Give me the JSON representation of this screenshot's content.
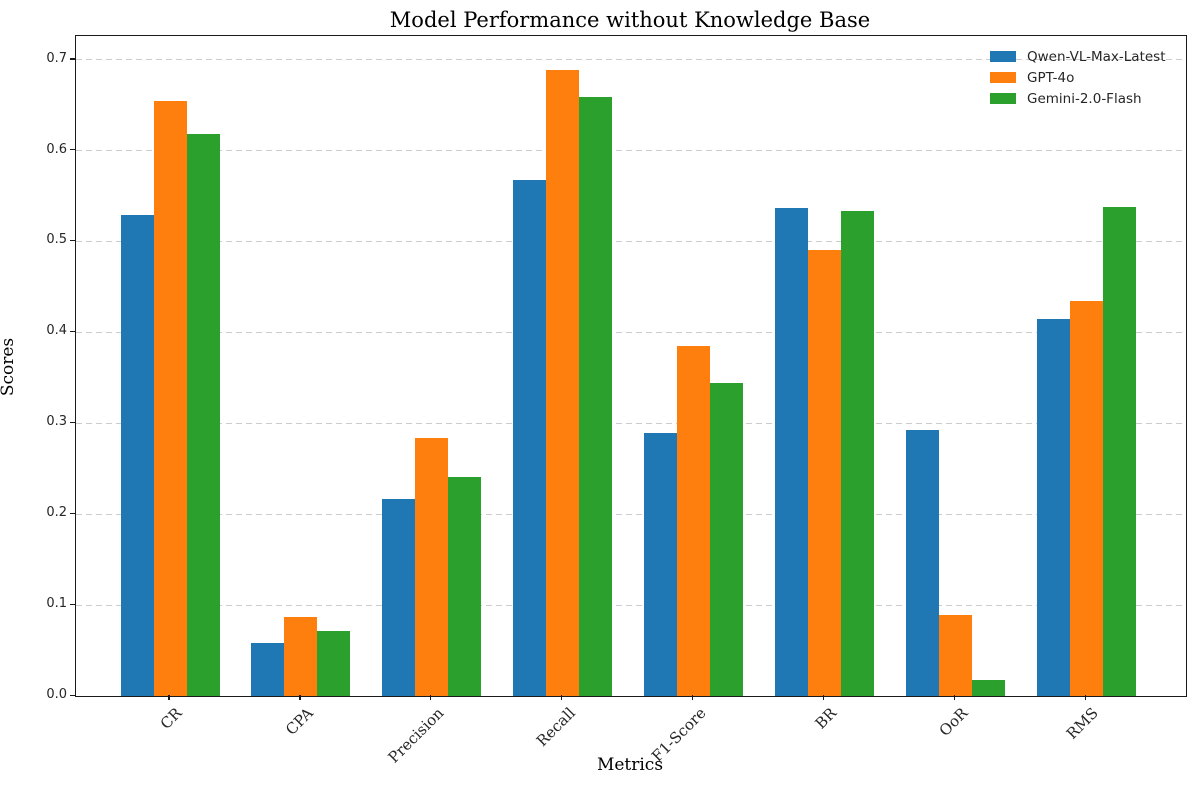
{
  "chart_data": {
    "type": "bar",
    "title": "Model Performance without Knowledge Base",
    "xlabel": "Metrics",
    "ylabel": "Scores",
    "categories": [
      "CR",
      "CPA",
      "Precision",
      "Recall",
      "F1-Score",
      "BR",
      "OoR",
      "RMS"
    ],
    "series": [
      {
        "name": "Qwen-VL-Max-Latest",
        "color": "#1f77b4",
        "values": [
          0.529,
          0.058,
          0.217,
          0.568,
          0.289,
          0.537,
          0.293,
          0.415
        ]
      },
      {
        "name": "GPT-4o",
        "color": "#ff7f0e",
        "values": [
          0.654,
          0.087,
          0.284,
          0.689,
          0.385,
          0.491,
          0.089,
          0.435
        ]
      },
      {
        "name": "Gemini-2.0-Flash",
        "color": "#2ca02c",
        "values": [
          0.618,
          0.071,
          0.241,
          0.659,
          0.344,
          0.533,
          0.018,
          0.538
        ]
      }
    ],
    "ytick_labels": [
      "0.0",
      "0.1",
      "0.2",
      "0.3",
      "0.4",
      "0.5",
      "0.6",
      "0.7"
    ],
    "ylim": [
      0,
      0.726
    ],
    "grid": "horizontal-dashed",
    "grid_color": "#cccccc",
    "legend_position": "upper-right",
    "legend_frame": false
  }
}
